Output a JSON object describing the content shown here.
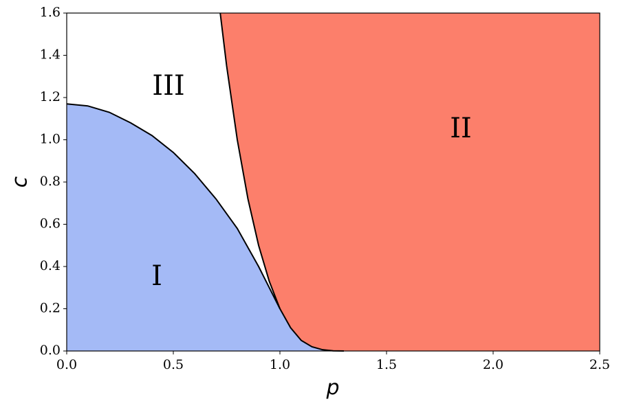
{
  "chart_data": {
    "type": "phase",
    "xlabel": "p",
    "ylabel": "c",
    "xlim": [
      0,
      2.5
    ],
    "ylim": [
      0,
      1.6
    ],
    "xticks": [
      {
        "value": 0,
        "label": "0.0"
      },
      0.5,
      {
        "value": 1,
        "label": "1.0"
      },
      1.5,
      {
        "value": 2,
        "label": "2.0"
      },
      2.5
    ],
    "yticks": [
      {
        "value": 0,
        "label": "0.0"
      },
      0.2,
      0.4,
      0.6,
      0.8,
      {
        "value": 1,
        "label": "1.0"
      },
      1.2,
      1.4,
      1.6
    ],
    "series": [
      {
        "color": "#000000",
        "fill": "#a4baf6",
        "fill_side": "below",
        "x": [
          0,
          0.1,
          0.2,
          0.3,
          0.4,
          0.5,
          0.6,
          0.7,
          0.8,
          0.9,
          1.0
        ],
        "values": [
          1.17,
          1.16,
          1.13,
          1.08,
          1.02,
          0.94,
          0.84,
          0.72,
          0.58,
          0.4,
          0.2
        ]
      },
      {
        "color": "#000000",
        "fill": "#fc7f6b",
        "fill_side": "right",
        "x": [
          0.72,
          0.75,
          0.8,
          0.85,
          0.9,
          0.95,
          1.0,
          1.05,
          1.1,
          1.15,
          1.2,
          1.25,
          1.3
        ],
        "values": [
          1.6,
          1.35,
          1.0,
          0.72,
          0.5,
          0.33,
          0.2,
          0.11,
          0.05,
          0.02,
          0.006,
          0.001,
          0
        ]
      }
    ],
    "annotations": [
      {
        "text": "I"
      },
      {
        "text": "II"
      },
      {
        "text": "III"
      }
    ]
  }
}
